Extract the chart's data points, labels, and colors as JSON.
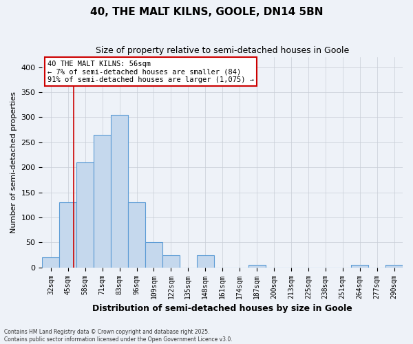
{
  "title": "40, THE MALT KILNS, GOOLE, DN14 5BN",
  "subtitle": "Size of property relative to semi-detached houses in Goole",
  "xlabel": "Distribution of semi-detached houses by size in Goole",
  "ylabel": "Number of semi-detached properties",
  "bins": [
    "32sqm",
    "45sqm",
    "58sqm",
    "71sqm",
    "83sqm",
    "96sqm",
    "109sqm",
    "122sqm",
    "135sqm",
    "148sqm",
    "161sqm",
    "174sqm",
    "187sqm",
    "200sqm",
    "213sqm",
    "225sqm",
    "238sqm",
    "251sqm",
    "264sqm",
    "277sqm",
    "290sqm"
  ],
  "bar_heights": [
    20,
    130,
    210,
    265,
    305,
    130,
    50,
    25,
    0,
    25,
    0,
    0,
    5,
    0,
    0,
    0,
    0,
    0,
    5,
    0,
    5
  ],
  "bar_color": "#c5d8ed",
  "bar_edge_color": "#5b9bd5",
  "grid_color": "#c8cdd6",
  "background_color": "#eef2f8",
  "annotation_line1": "40 THE MALT KILNS: 56sqm",
  "annotation_line2": "← 7% of semi-detached houses are smaller (84)",
  "annotation_line3": "91% of semi-detached houses are larger (1,075) →",
  "annotation_box_color": "#ffffff",
  "annotation_border_color": "#cc0000",
  "red_line_x": 1.32,
  "ylim": [
    0,
    420
  ],
  "yticks": [
    0,
    50,
    100,
    150,
    200,
    250,
    300,
    350,
    400
  ],
  "footer_line1": "Contains HM Land Registry data © Crown copyright and database right 2025.",
  "footer_line2": "Contains public sector information licensed under the Open Government Licence v3.0."
}
